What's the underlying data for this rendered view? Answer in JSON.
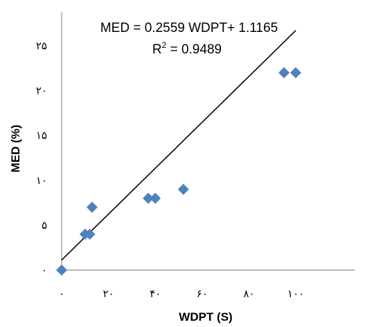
{
  "chart_data": {
    "type": "scatter",
    "title": "",
    "xlabel": "WDPT (S)",
    "ylabel": "MED (%)",
    "xlim": [
      0,
      100
    ],
    "ylim": [
      0,
      25
    ],
    "x_ticks": [
      0,
      20,
      40,
      60,
      80,
      100
    ],
    "y_ticks": [
      0,
      5,
      10,
      15,
      20,
      25
    ],
    "x_tick_labels": [
      "٠",
      "٢٠",
      "۴٠",
      "۶٠",
      "٨٠",
      "١٠٠"
    ],
    "y_tick_labels": [
      "٠",
      "۵",
      "١٠",
      "١۵",
      "٢٠",
      "٢۵"
    ],
    "grid": false,
    "legend": "none",
    "series": [
      {
        "marker": "diamond",
        "color": "#4F81BD",
        "points": [
          {
            "x": 0,
            "y": 0
          },
          {
            "x": 10,
            "y": 4
          },
          {
            "x": 12,
            "y": 4
          },
          {
            "x": 13,
            "y": 7
          },
          {
            "x": 37,
            "y": 8
          },
          {
            "x": 40,
            "y": 8
          },
          {
            "x": 52,
            "y": 9
          },
          {
            "x": 95,
            "y": 22
          },
          {
            "x": 100,
            "y": 22
          }
        ]
      }
    ],
    "trendline": {
      "type": "linear",
      "slope": 0.2559,
      "intercept": 1.1165,
      "x_range": [
        0,
        100
      ],
      "color": "#000000"
    },
    "annotations": {
      "equation": "MED = 0.2559 WDPT+ 1.1165",
      "r2_prefix": "R",
      "r2_sup": "2",
      "r2_value": " = 0.9489"
    }
  }
}
